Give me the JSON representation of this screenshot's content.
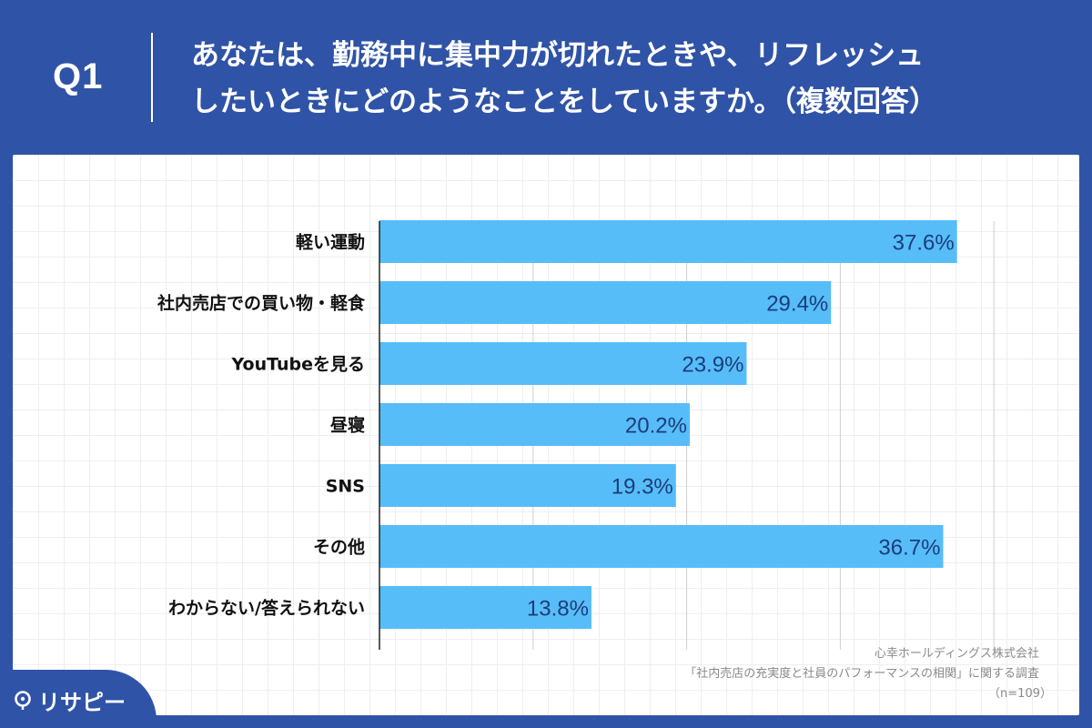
{
  "header": {
    "question_number": "Q1",
    "question_line1": "あなたは、勤務中に集中力が切れたときや、リフレッシュ",
    "question_line2": "したいときにどのようなことをしていますか。（複数回答）"
  },
  "chart_data": {
    "type": "bar",
    "orientation": "horizontal",
    "categories": [
      "軽い運動",
      "社内売店での買い物・軽食",
      "YouTubeを見る",
      "昼寝",
      "SNS",
      "その他",
      "わからない/答えられない"
    ],
    "values": [
      37.6,
      29.4,
      23.9,
      20.2,
      19.3,
      36.7,
      13.8
    ],
    "value_labels": [
      "37.6%",
      "29.4%",
      "23.9%",
      "20.2%",
      "19.3%",
      "36.7%",
      "13.8%"
    ],
    "title": "",
    "xlabel": "",
    "ylabel": "",
    "xlim": [
      0,
      40
    ],
    "grid": true,
    "legend": "none",
    "colors": {
      "bar": "#56bdf9",
      "label": "#1c3d7a"
    }
  },
  "footer": {
    "company": "心幸ホールディングス株式会社",
    "survey": "「社内売店の充実度と社員のパフォーマンスの相関」に関する調査",
    "sample": "（n=109）"
  },
  "brand": {
    "logo_text": "リサピー",
    "logo_icon": "pin-icon"
  },
  "colors": {
    "background": "#2f53a6",
    "panel": "#ffffff"
  }
}
